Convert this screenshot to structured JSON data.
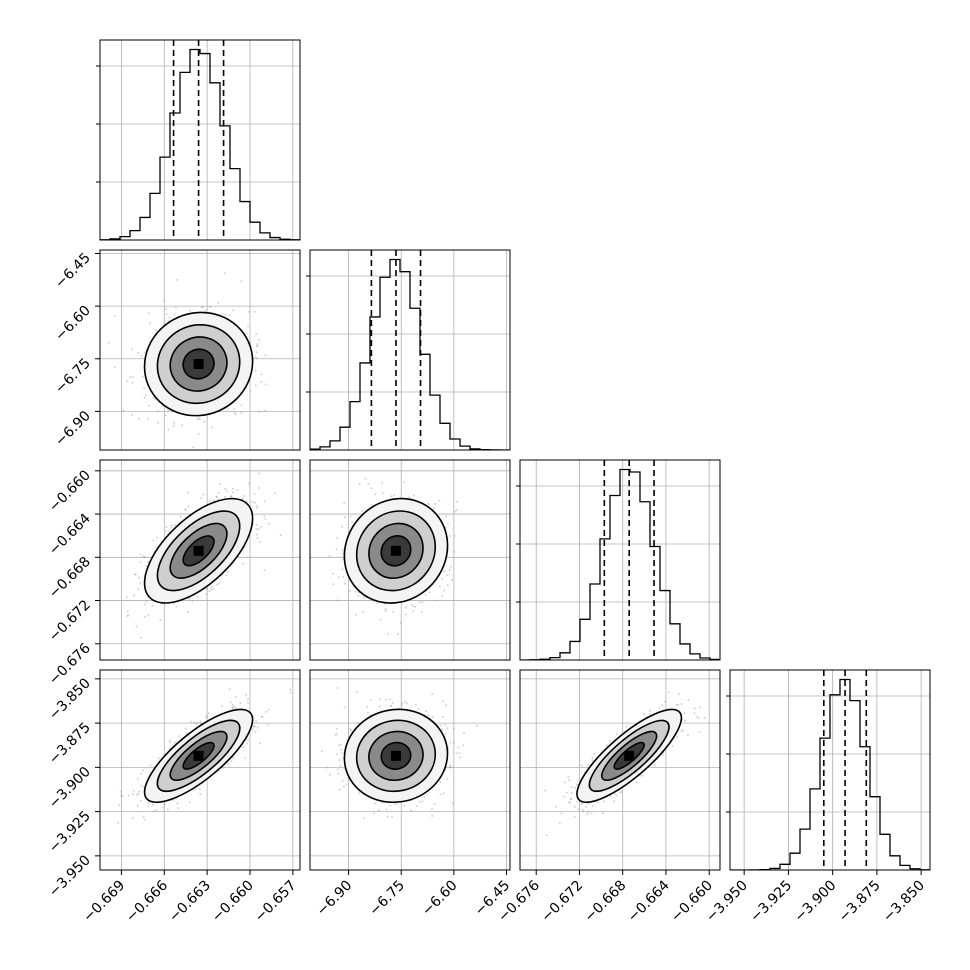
{
  "chart_data": {
    "type": "corner",
    "title": "",
    "parameters": [
      {
        "range": [
          -0.6705,
          -0.6565
        ],
        "mean": -0.6636,
        "sd": 0.0018,
        "quantiles": [
          -0.66535,
          -0.6636,
          -0.66185
        ],
        "ticks": [
          -0.669,
          -0.666,
          -0.663,
          -0.66,
          -0.657
        ],
        "tick_labels": [
          "−0.669",
          "−0.666",
          "−0.663",
          "−0.660",
          "−0.657"
        ]
      },
      {
        "range": [
          -7.01,
          -6.44
        ],
        "mean": -6.765,
        "sd": 0.07,
        "quantiles": [
          -6.835,
          -6.765,
          -6.695
        ],
        "ticks": [
          -6.9,
          -6.75,
          -6.6,
          -6.45
        ],
        "tick_labels": [
          "−6.90",
          "−6.75",
          "−6.60",
          "−6.45"
        ]
      },
      {
        "range": [
          -0.6775,
          -0.659
        ],
        "mean": -0.6674,
        "sd": 0.0023,
        "quantiles": [
          -0.6697,
          -0.6674,
          -0.6651
        ],
        "ticks": [
          -0.676,
          -0.672,
          -0.668,
          -0.664,
          -0.66
        ],
        "tick_labels": [
          "−0.676",
          "−0.672",
          "−0.668",
          "−0.664",
          "−0.660"
        ]
      },
      {
        "range": [
          -3.958,
          -3.845
        ],
        "mean": -3.8935,
        "sd": 0.0125,
        "quantiles": [
          -3.905,
          -3.893,
          -3.881
        ],
        "ticks": [
          -3.95,
          -3.925,
          -3.9,
          -3.875,
          -3.85
        ],
        "tick_labels": [
          "−3.950",
          "−3.925",
          "−3.900",
          "−3.875",
          "−3.850"
        ]
      }
    ],
    "correlations": [
      [
        1,
        0.05,
        0.62,
        0.78
      ],
      [
        0.05,
        1,
        0.1,
        0.05
      ],
      [
        0.62,
        0.1,
        1,
        0.82
      ],
      [
        0.78,
        0.05,
        0.82,
        1
      ]
    ],
    "grid": true,
    "contour_levels": [
      0.5,
      1.0,
      1.5,
      2.0
    ],
    "quantile_style": "dashed",
    "colors": {
      "axis": "#000000",
      "grid": "#b0b0b0",
      "points": "#808080",
      "line": "#000000"
    }
  }
}
